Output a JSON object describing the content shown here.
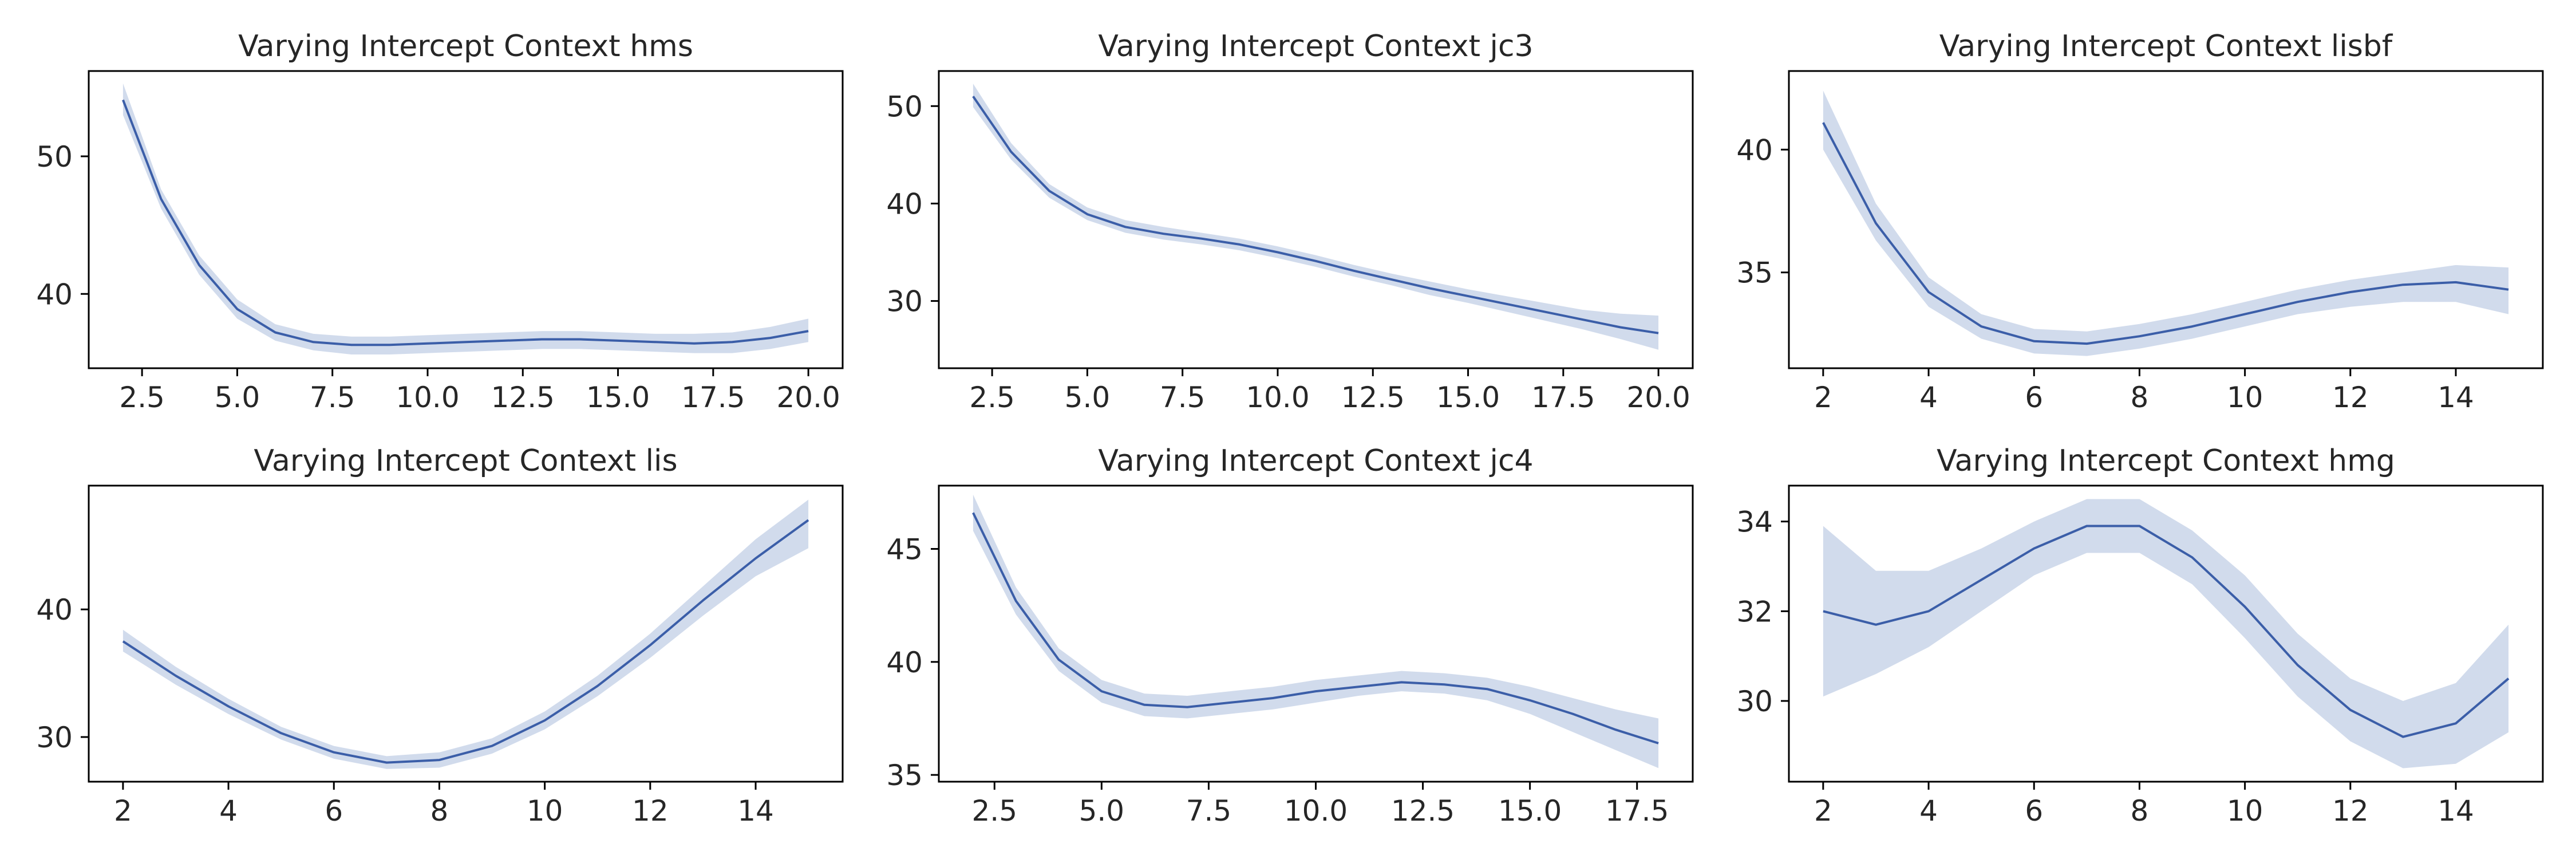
{
  "figure": {
    "line_color": "#3b5ea8",
    "band_color": "#b8c7e2",
    "band_opacity": 0.65
  },
  "chart_data": [
    {
      "type": "line",
      "title": "Varying Intercept Context hms",
      "xlabel": "",
      "ylabel": "",
      "xlim": [
        1.1,
        20.9
      ],
      "ylim": [
        34.6,
        56.2
      ],
      "xticks": [
        2.5,
        5.0,
        7.5,
        10.0,
        12.5,
        15.0,
        17.5,
        20.0
      ],
      "xtick_labels": [
        "2.5",
        "5.0",
        "7.5",
        "10.0",
        "12.5",
        "15.0",
        "17.5",
        "20.0"
      ],
      "yticks": [
        40,
        50
      ],
      "ytick_labels": [
        "40",
        "50"
      ],
      "grid": false,
      "x": [
        2,
        3,
        4,
        5,
        6,
        7,
        8,
        9,
        10,
        11,
        12,
        13,
        14,
        15,
        16,
        17,
        18,
        19,
        20
      ],
      "y": [
        54.1,
        46.9,
        42.1,
        38.9,
        37.2,
        36.5,
        36.3,
        36.3,
        36.4,
        36.5,
        36.6,
        36.7,
        36.7,
        36.6,
        36.5,
        36.4,
        36.5,
        36.8,
        37.3
      ],
      "lower": [
        53.0,
        46.2,
        41.4,
        38.2,
        36.6,
        35.9,
        35.6,
        35.6,
        35.7,
        35.8,
        35.9,
        36.0,
        36.0,
        35.9,
        35.8,
        35.7,
        35.7,
        36.0,
        36.5
      ],
      "upper": [
        55.3,
        47.6,
        42.8,
        39.6,
        37.8,
        37.1,
        36.9,
        36.9,
        37.0,
        37.1,
        37.2,
        37.3,
        37.3,
        37.2,
        37.1,
        37.1,
        37.2,
        37.6,
        38.2
      ]
    },
    {
      "type": "line",
      "title": "Varying Intercept Context jc3",
      "xlabel": "",
      "ylabel": "",
      "xlim": [
        1.1,
        20.9
      ],
      "ylim": [
        23.1,
        53.6
      ],
      "xticks": [
        2.5,
        5.0,
        7.5,
        10.0,
        12.5,
        15.0,
        17.5,
        20.0
      ],
      "xtick_labels": [
        "2.5",
        "5.0",
        "7.5",
        "10.0",
        "12.5",
        "15.0",
        "17.5",
        "20.0"
      ],
      "yticks": [
        30,
        40,
        50
      ],
      "ytick_labels": [
        "30",
        "40",
        "50"
      ],
      "grid": false,
      "x": [
        2,
        3,
        4,
        5,
        6,
        7,
        8,
        9,
        10,
        11,
        12,
        13,
        14,
        15,
        16,
        17,
        18,
        19,
        20
      ],
      "y": [
        51.0,
        45.3,
        41.3,
        38.9,
        37.6,
        36.9,
        36.4,
        35.8,
        35.0,
        34.1,
        33.1,
        32.2,
        31.3,
        30.5,
        29.7,
        28.9,
        28.1,
        27.3,
        26.7
      ],
      "lower": [
        49.9,
        44.5,
        40.6,
        38.3,
        37.0,
        36.3,
        35.8,
        35.2,
        34.4,
        33.5,
        32.5,
        31.6,
        30.6,
        29.8,
        28.9,
        28.0,
        27.1,
        26.1,
        25.0
      ],
      "upper": [
        52.3,
        46.2,
        42.0,
        39.6,
        38.3,
        37.6,
        37.0,
        36.4,
        35.6,
        34.7,
        33.7,
        32.8,
        32.0,
        31.2,
        30.5,
        29.8,
        29.1,
        28.7,
        28.5
      ]
    },
    {
      "type": "line",
      "title": "Varying Intercept Context lisbf",
      "xlabel": "",
      "ylabel": "",
      "xlim": [
        1.35,
        15.65
      ],
      "ylim": [
        31.1,
        43.2
      ],
      "xticks": [
        2,
        4,
        6,
        8,
        10,
        12,
        14
      ],
      "xtick_labels": [
        "2",
        "4",
        "6",
        "8",
        "10",
        "12",
        "14"
      ],
      "yticks": [
        35,
        40
      ],
      "ytick_labels": [
        "35",
        "40"
      ],
      "grid": false,
      "x": [
        2,
        3,
        4,
        5,
        6,
        7,
        8,
        9,
        10,
        11,
        12,
        13,
        14,
        15
      ],
      "y": [
        41.1,
        37.0,
        34.2,
        32.8,
        32.2,
        32.1,
        32.4,
        32.8,
        33.3,
        33.8,
        34.2,
        34.5,
        34.6,
        34.3
      ],
      "lower": [
        40.0,
        36.3,
        33.6,
        32.3,
        31.7,
        31.6,
        31.9,
        32.3,
        32.8,
        33.3,
        33.6,
        33.8,
        33.8,
        33.3
      ],
      "upper": [
        42.4,
        37.8,
        34.8,
        33.3,
        32.7,
        32.6,
        32.9,
        33.3,
        33.8,
        34.3,
        34.7,
        35.0,
        35.3,
        35.2
      ]
    },
    {
      "type": "line",
      "title": "Varying Intercept Context lis",
      "xlabel": "",
      "ylabel": "",
      "xlim": [
        1.35,
        15.65
      ],
      "ylim": [
        26.5,
        49.7
      ],
      "xticks": [
        2,
        4,
        6,
        8,
        10,
        12,
        14
      ],
      "xtick_labels": [
        "2",
        "4",
        "6",
        "8",
        "10",
        "12",
        "14"
      ],
      "yticks": [
        30,
        40
      ],
      "ytick_labels": [
        "30",
        "40"
      ],
      "grid": false,
      "x": [
        2,
        3,
        4,
        5,
        6,
        7,
        8,
        9,
        10,
        11,
        12,
        13,
        14,
        15
      ],
      "y": [
        37.5,
        34.8,
        32.4,
        30.3,
        28.8,
        28.0,
        28.2,
        29.3,
        31.3,
        34.0,
        37.2,
        40.7,
        44.0,
        47.0
      ],
      "lower": [
        36.7,
        34.1,
        31.8,
        29.8,
        28.3,
        27.5,
        27.6,
        28.7,
        30.6,
        33.2,
        36.2,
        39.5,
        42.6,
        44.8
      ],
      "upper": [
        38.4,
        35.5,
        33.0,
        30.8,
        29.3,
        28.5,
        28.8,
        29.9,
        32.0,
        34.8,
        38.1,
        41.8,
        45.5,
        48.6
      ]
    },
    {
      "type": "line",
      "title": "Varying Intercept Context jc4",
      "xlabel": "",
      "ylabel": "",
      "xlim": [
        1.2,
        18.8
      ],
      "ylim": [
        34.7,
        47.8
      ],
      "xticks": [
        2.5,
        5.0,
        7.5,
        10.0,
        12.5,
        15.0,
        17.5
      ],
      "xtick_labels": [
        "2.5",
        "5.0",
        "7.5",
        "10.0",
        "12.5",
        "15.0",
        "17.5"
      ],
      "yticks": [
        35,
        40,
        45
      ],
      "ytick_labels": [
        "35",
        "40",
        "45"
      ],
      "grid": false,
      "x": [
        2,
        3,
        4,
        5,
        6,
        7,
        8,
        9,
        10,
        11,
        12,
        13,
        14,
        15,
        16,
        17,
        18
      ],
      "y": [
        46.6,
        42.7,
        40.1,
        38.7,
        38.1,
        38.0,
        38.2,
        38.4,
        38.7,
        38.9,
        39.1,
        39.0,
        38.8,
        38.3,
        37.7,
        37.0,
        36.4
      ],
      "lower": [
        45.8,
        42.1,
        39.6,
        38.2,
        37.6,
        37.5,
        37.7,
        37.9,
        38.2,
        38.5,
        38.7,
        38.6,
        38.3,
        37.7,
        36.9,
        36.1,
        35.3
      ],
      "upper": [
        47.4,
        43.3,
        40.6,
        39.2,
        38.6,
        38.5,
        38.7,
        38.9,
        39.2,
        39.4,
        39.6,
        39.5,
        39.3,
        38.9,
        38.4,
        37.9,
        37.5
      ]
    },
    {
      "type": "line",
      "title": "Varying Intercept Context hmg",
      "xlabel": "",
      "ylabel": "",
      "xlim": [
        1.35,
        15.65
      ],
      "ylim": [
        28.2,
        34.8
      ],
      "xticks": [
        2,
        4,
        6,
        8,
        10,
        12,
        14
      ],
      "xtick_labels": [
        "2",
        "4",
        "6",
        "8",
        "10",
        "12",
        "14"
      ],
      "yticks": [
        30,
        32,
        34
      ],
      "ytick_labels": [
        "30",
        "32",
        "34"
      ],
      "grid": false,
      "x": [
        2,
        3,
        4,
        5,
        6,
        7,
        8,
        9,
        10,
        11,
        12,
        13,
        14,
        15
      ],
      "y": [
        32.0,
        31.7,
        32.0,
        32.7,
        33.4,
        33.9,
        33.9,
        33.2,
        32.1,
        30.8,
        29.8,
        29.2,
        29.5,
        30.5
      ],
      "lower": [
        30.1,
        30.6,
        31.2,
        32.0,
        32.8,
        33.3,
        33.3,
        32.6,
        31.4,
        30.1,
        29.1,
        28.5,
        28.6,
        29.3
      ],
      "upper": [
        33.9,
        32.9,
        32.9,
        33.4,
        34.0,
        34.5,
        34.5,
        33.8,
        32.8,
        31.5,
        30.5,
        30.0,
        30.4,
        31.7
      ]
    }
  ]
}
